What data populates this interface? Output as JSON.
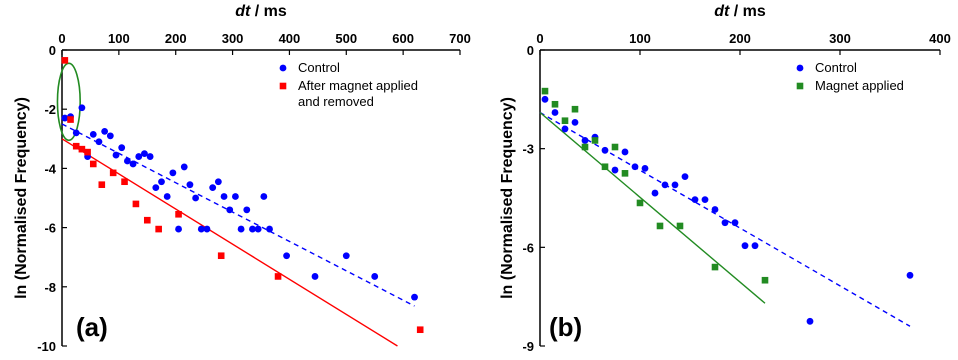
{
  "chart_data": [
    {
      "type": "scatter",
      "panel_label": "(a)",
      "xlabel_var": "dt",
      "xlabel_unit": " / ms",
      "ylabel": "ln (Normalised Frequency)",
      "xlim": [
        0,
        700
      ],
      "ylim": [
        -10,
        0
      ],
      "xticks": [
        0,
        100,
        200,
        300,
        400,
        500,
        600,
        700
      ],
      "yticks": [
        0,
        -2,
        -4,
        -6,
        -8,
        -10
      ],
      "x_axis_position": "top",
      "grid": false,
      "legend_position": "top-right",
      "series": [
        {
          "name": "Control",
          "color": "#0000ff",
          "marker": "circle",
          "points": [
            [
              5,
              -2.3
            ],
            [
              15,
              -2.25
            ],
            [
              25,
              -2.8
            ],
            [
              35,
              -1.95
            ],
            [
              45,
              -3.6
            ],
            [
              55,
              -2.85
            ],
            [
              65,
              -3.1
            ],
            [
              75,
              -2.75
            ],
            [
              85,
              -2.9
            ],
            [
              95,
              -3.55
            ],
            [
              105,
              -3.3
            ],
            [
              115,
              -3.75
            ],
            [
              125,
              -3.85
            ],
            [
              135,
              -3.6
            ],
            [
              145,
              -3.5
            ],
            [
              155,
              -3.6
            ],
            [
              165,
              -4.65
            ],
            [
              175,
              -4.45
            ],
            [
              185,
              -4.95
            ],
            [
              195,
              -4.15
            ],
            [
              205,
              -6.05
            ],
            [
              215,
              -3.95
            ],
            [
              225,
              -4.55
            ],
            [
              235,
              -5.0
            ],
            [
              245,
              -6.05
            ],
            [
              255,
              -6.05
            ],
            [
              265,
              -4.65
            ],
            [
              275,
              -4.45
            ],
            [
              285,
              -4.95
            ],
            [
              295,
              -5.4
            ],
            [
              305,
              -4.95
            ],
            [
              315,
              -6.05
            ],
            [
              325,
              -5.4
            ],
            [
              335,
              -6.05
            ],
            [
              345,
              -6.05
            ],
            [
              355,
              -4.95
            ],
            [
              365,
              -6.05
            ],
            [
              395,
              -6.95
            ],
            [
              445,
              -7.65
            ],
            [
              500,
              -6.95
            ],
            [
              550,
              -7.65
            ],
            [
              620,
              -8.35
            ]
          ]
        },
        {
          "name": "After magnet applied and removed",
          "color": "#ff0000",
          "marker": "square",
          "points": [
            [
              5,
              -0.35
            ],
            [
              15,
              -2.35
            ],
            [
              25,
              -3.25
            ],
            [
              35,
              -3.35
            ],
            [
              45,
              -3.45
            ],
            [
              55,
              -3.85
            ],
            [
              70,
              -4.55
            ],
            [
              90,
              -4.15
            ],
            [
              110,
              -4.45
            ],
            [
              130,
              -5.2
            ],
            [
              150,
              -5.75
            ],
            [
              170,
              -6.05
            ],
            [
              205,
              -5.55
            ],
            [
              280,
              -6.95
            ],
            [
              380,
              -7.65
            ],
            [
              630,
              -9.45
            ]
          ]
        }
      ],
      "fit_lines": [
        {
          "series": "Control",
          "color": "#0000ff",
          "style": "dashed",
          "x": [
            0,
            620
          ],
          "y": [
            -2.5,
            -8.65
          ]
        },
        {
          "series": "After magnet applied and removed",
          "color": "#ff0000",
          "style": "solid",
          "x": [
            0,
            590
          ],
          "y": [
            -3.0,
            -10.0
          ]
        }
      ],
      "highlight_ellipse": {
        "color": "#228B22",
        "center": [
          12,
          -1.75
        ],
        "radii": [
          20,
          1.3
        ]
      }
    },
    {
      "type": "scatter",
      "panel_label": "(b)",
      "xlabel_var": "dt",
      "xlabel_unit": " / ms",
      "ylabel": "ln (Normalised Frequency)",
      "xlim": [
        0,
        400
      ],
      "ylim": [
        -9,
        0
      ],
      "xticks": [
        0,
        100,
        200,
        300,
        400
      ],
      "yticks": [
        0,
        -3,
        -6,
        -9
      ],
      "x_axis_position": "top",
      "grid": false,
      "legend_position": "top-right",
      "series": [
        {
          "name": "Control",
          "color": "#0000ff",
          "marker": "circle",
          "points": [
            [
              5,
              -1.5
            ],
            [
              15,
              -1.9
            ],
            [
              25,
              -2.4
            ],
            [
              35,
              -2.2
            ],
            [
              45,
              -2.75
            ],
            [
              55,
              -2.65
            ],
            [
              65,
              -3.05
            ],
            [
              75,
              -3.65
            ],
            [
              85,
              -3.1
            ],
            [
              95,
              -3.55
            ],
            [
              105,
              -3.6
            ],
            [
              115,
              -4.35
            ],
            [
              125,
              -4.1
            ],
            [
              135,
              -4.1
            ],
            [
              145,
              -3.85
            ],
            [
              155,
              -4.55
            ],
            [
              165,
              -4.55
            ],
            [
              175,
              -4.85
            ],
            [
              185,
              -5.25
            ],
            [
              195,
              -5.25
            ],
            [
              205,
              -5.95
            ],
            [
              215,
              -5.95
            ],
            [
              270,
              -8.25
            ],
            [
              370,
              -6.85
            ]
          ]
        },
        {
          "name": "Magnet applied",
          "color": "#228B22",
          "marker": "square",
          "points": [
            [
              5,
              -1.25
            ],
            [
              15,
              -1.65
            ],
            [
              25,
              -2.15
            ],
            [
              35,
              -1.8
            ],
            [
              45,
              -2.95
            ],
            [
              55,
              -2.75
            ],
            [
              65,
              -3.55
            ],
            [
              75,
              -2.95
            ],
            [
              85,
              -3.75
            ],
            [
              100,
              -4.65
            ],
            [
              120,
              -5.35
            ],
            [
              140,
              -5.35
            ],
            [
              175,
              -6.6
            ],
            [
              225,
              -7.0
            ]
          ]
        }
      ],
      "fit_lines": [
        {
          "series": "Control",
          "color": "#0000ff",
          "style": "dashed",
          "x": [
            0,
            370
          ],
          "y": [
            -1.9,
            -8.4
          ]
        },
        {
          "series": "Magnet applied",
          "color": "#228B22",
          "style": "solid",
          "x": [
            0,
            225
          ],
          "y": [
            -1.9,
            -7.7
          ]
        }
      ]
    }
  ]
}
